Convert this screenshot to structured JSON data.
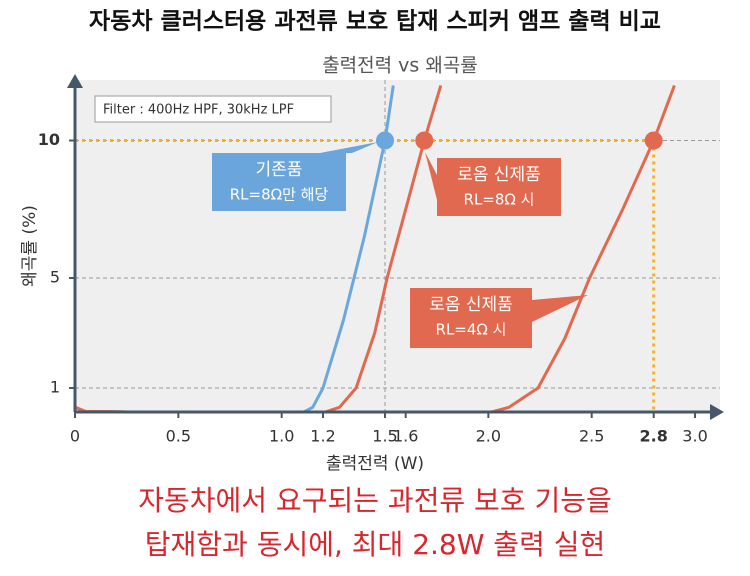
{
  "chart_data": {
    "type": "line",
    "title": "자동차 클러스터용 과전류 보호 탑재 스피커 앰프 출력 비교",
    "subtitle": "출력전력 vs 왜곡률",
    "x_label": "출력전력 (W)",
    "y_label": "왜곡률 (%)",
    "note": "Filter : 400Hz HPF, 30kHz LPF",
    "xlim": [
      0,
      3.1
    ],
    "ylim": [
      0,
      12
    ],
    "xticks": [
      0,
      0.5,
      {
        "value": 1,
        "label": "1.0"
      },
      1.2,
      1.5,
      1.6,
      {
        "value": 2,
        "label": "2.0"
      },
      2.5,
      2.8,
      {
        "value": 3,
        "label": "3.0"
      }
    ],
    "yticks": [
      1,
      5,
      10
    ],
    "grid": true,
    "x_grid": [
      1.5
    ],
    "hline": 10,
    "vline": 2.8,
    "series": [
      {
        "name": "기존품",
        "color": "#6aa7dd",
        "x": [
          0,
          0.05,
          0.5,
          1.1,
          1.15,
          1.2,
          1.3,
          1.4,
          1.5,
          1.54
        ],
        "values": [
          0.3,
          0.15,
          0.1,
          0.1,
          0.3,
          1,
          3.5,
          6.5,
          10,
          12
        ]
      },
      {
        "name": "로옴 신제품 RL=8Ω",
        "color": "#e0694f",
        "x": [
          0,
          0.05,
          0.5,
          1.2,
          1.28,
          1.36,
          1.45,
          1.51,
          1.6,
          1.69,
          1.77
        ],
        "values": [
          0.3,
          0.15,
          0.1,
          0.1,
          0.3,
          1,
          3,
          5,
          7.5,
          10,
          12
        ]
      },
      {
        "name": "로옴 신제품 RL=4Ω",
        "color": "#e0694f",
        "x": [
          0,
          0.05,
          0.5,
          2.0,
          2.1,
          2.24,
          2.37,
          2.49,
          2.65,
          2.8,
          2.9
        ],
        "values": [
          0.3,
          0.15,
          0.1,
          0.1,
          0.3,
          1,
          2.8,
          5,
          7.5,
          10,
          12
        ]
      }
    ],
    "highlights": [
      {
        "x": 1.5,
        "y": 10,
        "color": "#6aa7dd"
      },
      {
        "x": 1.69,
        "y": 10,
        "color": "#e0694f"
      },
      {
        "x": 2.8,
        "y": 10,
        "color": "#e0694f"
      }
    ],
    "annotations": [
      {
        "lines": [
          "기존품",
          "RL=8Ω만 해당"
        ],
        "color": "#6aa5dc"
      },
      {
        "lines": [
          "로옴 신제품",
          "RL=8Ω 시"
        ],
        "color": "#e0694f"
      },
      {
        "lines": [
          "로옴 신제품",
          "RL=4Ω 시"
        ],
        "color": "#e0694f"
      }
    ],
    "caption": [
      "자동차에서 요구되는 과전류 보호 기능을",
      "탑재함과 동시에, 최대 2.8W 출력 실현"
    ]
  }
}
